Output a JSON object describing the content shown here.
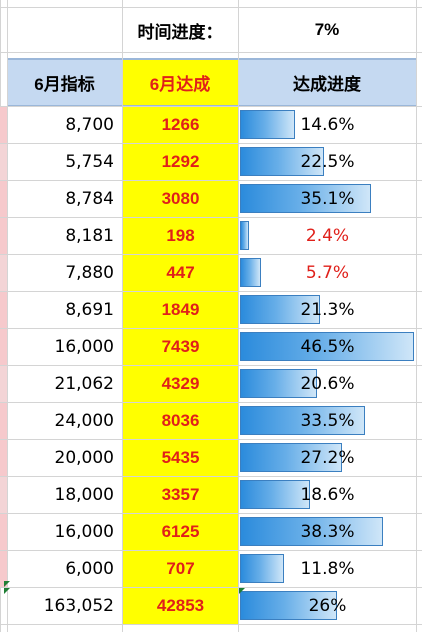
{
  "schedule": {
    "label": "时间进度：",
    "value": "7%"
  },
  "headers": {
    "target": "6月指标",
    "achieved": "6月达成",
    "progress": "达成进度"
  },
  "rows": [
    {
      "target": "8,700",
      "achieved": "1266",
      "progress_text": "14.6%",
      "progress": 0.146,
      "below_schedule": false
    },
    {
      "target": "5,754",
      "achieved": "1292",
      "progress_text": "22.5%",
      "progress": 0.225,
      "below_schedule": false
    },
    {
      "target": "8,784",
      "achieved": "3080",
      "progress_text": "35.1%",
      "progress": 0.351,
      "below_schedule": false
    },
    {
      "target": "8,181",
      "achieved": "198",
      "progress_text": "2.4%",
      "progress": 0.024,
      "below_schedule": true
    },
    {
      "target": "7,880",
      "achieved": "447",
      "progress_text": "5.7%",
      "progress": 0.057,
      "below_schedule": true
    },
    {
      "target": "8,691",
      "achieved": "1849",
      "progress_text": "21.3%",
      "progress": 0.213,
      "below_schedule": false
    },
    {
      "target": "16,000",
      "achieved": "7439",
      "progress_text": "46.5%",
      "progress": 0.465,
      "below_schedule": false
    },
    {
      "target": "21,062",
      "achieved": "4329",
      "progress_text": "20.6%",
      "progress": 0.206,
      "below_schedule": false
    },
    {
      "target": "24,000",
      "achieved": "8036",
      "progress_text": "33.5%",
      "progress": 0.335,
      "below_schedule": false
    },
    {
      "target": "20,000",
      "achieved": "5435",
      "progress_text": "27.2%",
      "progress": 0.272,
      "below_schedule": false
    },
    {
      "target": "18,000",
      "achieved": "3357",
      "progress_text": "18.6%",
      "progress": 0.186,
      "below_schedule": false
    },
    {
      "target": "16,000",
      "achieved": "6125",
      "progress_text": "38.3%",
      "progress": 0.383,
      "below_schedule": false
    },
    {
      "target": "6,000",
      "achieved": "707",
      "progress_text": "11.8%",
      "progress": 0.118,
      "below_schedule": false
    },
    {
      "target": "163,052",
      "achieved": "42853",
      "progress_text": "26%",
      "progress": 0.26,
      "below_schedule": false
    }
  ],
  "colors": {
    "header_bg": "#c5d9f1",
    "highlight": "#ffff00",
    "alert_text": "#e0201a",
    "bar_start": "#2b8bdc",
    "bar_end": "#cfe6f8"
  }
}
